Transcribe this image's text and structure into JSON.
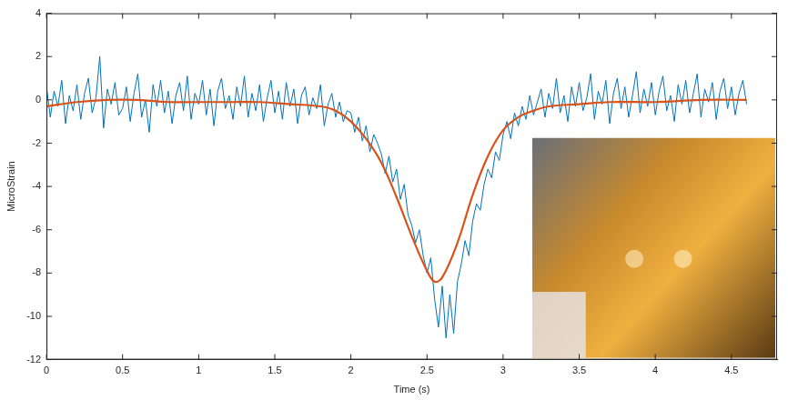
{
  "chart_data": {
    "type": "line",
    "xlabel": "Time (s)",
    "ylabel": "MicroStrain",
    "xlim": [
      0,
      4.8
    ],
    "xticks": [
      0,
      0.5,
      1,
      1.5,
      2,
      2.5,
      3,
      3.5,
      4,
      4.5
    ],
    "ylim": [
      -12,
      4
    ],
    "yticks": [
      -12,
      -10,
      -8,
      -6,
      -4,
      -2,
      0,
      2,
      4
    ],
    "grid": false,
    "series": [
      {
        "color": "#0072bd",
        "line_style": "solid",
        "marker": "none",
        "x": [
          0,
          0.025,
          0.05,
          0.075,
          0.1,
          0.125,
          0.15,
          0.175,
          0.2,
          0.225,
          0.25,
          0.275,
          0.3,
          0.325,
          0.35,
          0.375,
          0.4,
          0.425,
          0.45,
          0.475,
          0.5,
          0.525,
          0.55,
          0.575,
          0.6,
          0.625,
          0.65,
          0.675,
          0.7,
          0.725,
          0.75,
          0.775,
          0.8,
          0.825,
          0.85,
          0.875,
          0.9,
          0.925,
          0.95,
          0.975,
          1,
          1.025,
          1.05,
          1.075,
          1.1,
          1.125,
          1.15,
          1.175,
          1.2,
          1.225,
          1.25,
          1.275,
          1.3,
          1.325,
          1.35,
          1.375,
          1.4,
          1.425,
          1.45,
          1.475,
          1.5,
          1.525,
          1.55,
          1.575,
          1.6,
          1.625,
          1.65,
          1.675,
          1.7,
          1.725,
          1.75,
          1.775,
          1.8,
          1.825,
          1.85,
          1.875,
          1.9,
          1.925,
          1.95,
          1.975,
          2,
          2.025,
          2.05,
          2.075,
          2.1,
          2.125,
          2.15,
          2.175,
          2.2,
          2.225,
          2.25,
          2.275,
          2.3,
          2.325,
          2.35,
          2.375,
          2.4,
          2.425,
          2.45,
          2.475,
          2.5,
          2.525,
          2.55,
          2.575,
          2.6,
          2.625,
          2.65,
          2.675,
          2.7,
          2.725,
          2.75,
          2.775,
          2.8,
          2.825,
          2.85,
          2.875,
          2.9,
          2.925,
          2.95,
          2.975,
          3,
          3.025,
          3.05,
          3.075,
          3.1,
          3.125,
          3.15,
          3.175,
          3.2,
          3.225,
          3.25,
          3.275,
          3.3,
          3.325,
          3.35,
          3.375,
          3.4,
          3.425,
          3.45,
          3.475,
          3.5,
          3.525,
          3.55,
          3.575,
          3.6,
          3.625,
          3.65,
          3.675,
          3.7,
          3.725,
          3.75,
          3.775,
          3.8,
          3.825,
          3.85,
          3.875,
          3.9,
          3.925,
          3.95,
          3.975,
          4,
          4.025,
          4.05,
          4.075,
          4.1,
          4.125,
          4.15,
          4.175,
          4.2,
          4.225,
          4.25,
          4.275,
          4.3,
          4.325,
          4.35,
          4.375,
          4.4,
          4.425,
          4.45,
          4.475,
          4.5,
          4.525,
          4.55,
          4.575,
          4.6
        ],
        "values": [
          0.6,
          -0.8,
          0.4,
          -0.3,
          0.9,
          -1.1,
          0.2,
          -0.5,
          0.7,
          -0.9,
          0.3,
          1.0,
          -0.6,
          0.1,
          2.0,
          -1.3,
          0.5,
          -0.2,
          0.8,
          -0.7,
          -0.4,
          0.6,
          -1.0,
          0.3,
          1.2,
          -0.8,
          0.0,
          -1.5,
          0.7,
          -0.3,
          0.9,
          -0.6,
          0.4,
          -1.1,
          0.2,
          0.8,
          -0.5,
          1.1,
          -0.9,
          0.3,
          -0.2,
          0.9,
          -0.7,
          0.5,
          -1.2,
          0.4,
          1.0,
          -0.4,
          0.2,
          -0.9,
          0.6,
          -0.3,
          1.1,
          -0.8,
          0.3,
          -0.5,
          0.7,
          -1.0,
          0.1,
          0.9,
          -0.6,
          0.4,
          -0.9,
          0.8,
          -0.3,
          0.5,
          -1.1,
          0.2,
          0.6,
          -0.7,
          0.1,
          -0.4,
          0.7,
          -1.2,
          -0.2,
          0.3,
          -0.8,
          -0.1,
          -1.0,
          -0.5,
          -0.6,
          -1.5,
          -0.8,
          -1.9,
          -1.2,
          -2.4,
          -1.6,
          -2.0,
          -2.5,
          -3.4,
          -2.6,
          -3.8,
          -3.2,
          -4.6,
          -3.9,
          -5.3,
          -5.8,
          -6.6,
          -6.0,
          -7.2,
          -8.0,
          -7.3,
          -9.2,
          -10.5,
          -8.6,
          -11.0,
          -9.0,
          -10.8,
          -8.4,
          -7.6,
          -6.5,
          -7.2,
          -5.6,
          -4.8,
          -5.1,
          -3.9,
          -3.2,
          -3.6,
          -2.4,
          -2.8,
          -1.6,
          -1.0,
          -1.8,
          -0.6,
          -1.2,
          -0.3,
          -0.9,
          0.2,
          -0.7,
          -0.1,
          0.5,
          -0.8,
          0.3,
          -0.4,
          1.0,
          -0.6,
          0.2,
          -1.0,
          0.6,
          -0.3,
          0.8,
          -0.5,
          0.1,
          1.2,
          -0.9,
          0.4,
          -0.2,
          0.9,
          -1.1,
          0.3,
          1.0,
          -0.4,
          0.6,
          -0.8,
          0.2,
          1.3,
          -0.6,
          0.5,
          -0.3,
          0.8,
          -0.7,
          0.4,
          1.1,
          -0.5,
          0.2,
          -1.0,
          0.7,
          -0.2,
          0.9,
          -0.6,
          0.3,
          1.2,
          -0.8,
          0.5,
          -0.1,
          0.8,
          -0.9,
          0.4,
          1.0,
          -0.4,
          0.6,
          -0.7,
          0.3,
          0.9,
          -0.2
        ]
      },
      {
        "color": "#d95319",
        "line_style": "solid",
        "marker": "none",
        "x": [
          0,
          0.2,
          0.4,
          0.6,
          0.8,
          1.0,
          1.2,
          1.4,
          1.6,
          1.8,
          1.9,
          2.0,
          2.1,
          2.2,
          2.3,
          2.4,
          2.5,
          2.55,
          2.6,
          2.7,
          2.8,
          2.9,
          3.0,
          3.1,
          3.2,
          3.3,
          3.5,
          3.7,
          4.0,
          4.3,
          4.6
        ],
        "values": [
          -0.3,
          -0.1,
          0,
          0,
          -0.1,
          -0.1,
          -0.1,
          -0.1,
          -0.2,
          -0.3,
          -0.5,
          -1.0,
          -1.8,
          -2.9,
          -4.5,
          -6.3,
          -7.9,
          -8.4,
          -8.2,
          -6.6,
          -4.4,
          -2.6,
          -1.4,
          -0.8,
          -0.5,
          -0.3,
          -0.2,
          -0.1,
          -0.1,
          0,
          0
        ]
      }
    ]
  }
}
